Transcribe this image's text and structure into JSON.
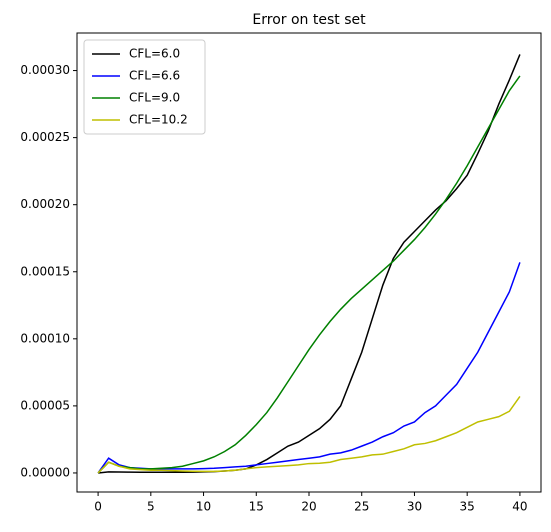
{
  "chart_data": {
    "type": "line",
    "title": "Error on test set",
    "x": [
      0,
      1,
      2,
      3,
      4,
      5,
      6,
      7,
      8,
      9,
      10,
      11,
      12,
      13,
      14,
      15,
      16,
      17,
      18,
      19,
      20,
      21,
      22,
      23,
      24,
      25,
      26,
      27,
      28,
      29,
      30,
      31,
      32,
      33,
      34,
      35,
      36,
      37,
      38,
      39,
      40
    ],
    "series": [
      {
        "name": "CFL=6.0",
        "color": "#000000",
        "values": [
          0,
          8e-07,
          7e-07,
          6e-07,
          5e-07,
          5e-07,
          5e-07,
          5e-07,
          5e-07,
          6e-07,
          8e-07,
          1e-06,
          1.5e-06,
          2e-06,
          3e-06,
          6e-06,
          1e-05,
          1.5e-05,
          2e-05,
          2.3e-05,
          2.8e-05,
          3.3e-05,
          4e-05,
          5e-05,
          7e-05,
          9e-05,
          0.000115,
          0.00014,
          0.00016,
          0.000172,
          0.00018,
          0.000188,
          0.000196,
          0.000203,
          0.000212,
          0.000222,
          0.000238,
          0.000255,
          0.000275,
          0.000293,
          0.000312
        ]
      },
      {
        "name": "CFL=6.6",
        "color": "#0000ff",
        "values": [
          0,
          1.1e-05,
          6e-06,
          4e-06,
          3.5e-06,
          3e-06,
          3e-06,
          3e-06,
          3e-06,
          3e-06,
          3.2e-06,
          3.5e-06,
          4e-06,
          4.5e-06,
          5e-06,
          6e-06,
          7e-06,
          8e-06,
          9e-06,
          1e-05,
          1.1e-05,
          1.2e-05,
          1.4e-05,
          1.5e-05,
          1.7e-05,
          2e-05,
          2.3e-05,
          2.7e-05,
          3e-05,
          3.5e-05,
          3.8e-05,
          4.5e-05,
          5e-05,
          5.8e-05,
          6.6e-05,
          7.8e-05,
          9e-05,
          0.000105,
          0.00012,
          0.000135,
          0.000157
        ]
      },
      {
        "name": "CFL=9.0",
        "color": "#008000",
        "values": [
          0,
          8e-06,
          5e-06,
          4e-06,
          3e-06,
          3e-06,
          3.5e-06,
          4e-06,
          5e-06,
          7e-06,
          9e-06,
          1.2e-05,
          1.6e-05,
          2.1e-05,
          2.8e-05,
          3.6e-05,
          4.5e-05,
          5.6e-05,
          6.8e-05,
          8e-05,
          9.2e-05,
          0.000103,
          0.000113,
          0.000122,
          0.00013,
          0.000137,
          0.000144,
          0.000151,
          0.000158,
          0.000166,
          0.000174,
          0.000183,
          0.000193,
          0.000204,
          0.000216,
          0.000229,
          0.000243,
          0.000257,
          0.000271,
          0.000285,
          0.000296
        ]
      },
      {
        "name": "CFL=10.2",
        "color": "#bfbf00",
        "values": [
          0,
          8e-06,
          5e-06,
          3e-06,
          2.5e-06,
          2e-06,
          2e-06,
          1.7e-06,
          1.5e-06,
          1.3e-06,
          1.2e-06,
          1.2e-06,
          1.5e-06,
          2e-06,
          3e-06,
          4e-06,
          4.5e-06,
          5e-06,
          5.5e-06,
          6e-06,
          7e-06,
          7.2e-06,
          8e-06,
          1e-05,
          1.1e-05,
          1.2e-05,
          1.35e-05,
          1.4e-05,
          1.6e-05,
          1.8e-05,
          2.1e-05,
          2.2e-05,
          2.4e-05,
          2.7e-05,
          3e-05,
          3.4e-05,
          3.8e-05,
          4e-05,
          4.2e-05,
          4.6e-05,
          5.7e-05
        ]
      }
    ],
    "xlim": [
      -2,
      42
    ],
    "xticks": [
      0,
      5,
      10,
      15,
      20,
      25,
      30,
      35,
      40
    ],
    "ylim": [
      -1.42e-05,
      0.000328
    ],
    "yticks": [
      {
        "value": 0,
        "label": "0.00000"
      },
      {
        "value": 5e-05,
        "label": "0.00005"
      },
      {
        "value": 0.0001,
        "label": "0.00010"
      },
      {
        "value": 0.00015,
        "label": "0.00015"
      },
      {
        "value": 0.0002,
        "label": "0.00020"
      },
      {
        "value": 0.00025,
        "label": "0.00025"
      },
      {
        "value": 0.0003,
        "label": "0.00030"
      }
    ],
    "legend": "upper-left",
    "grid": false
  }
}
